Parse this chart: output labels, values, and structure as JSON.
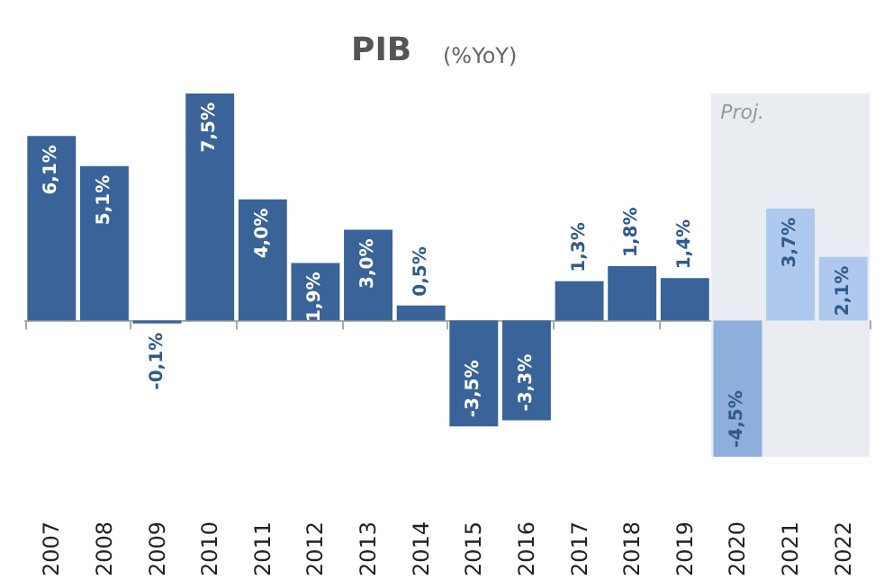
{
  "chart_data": {
    "type": "bar",
    "title": "PIB",
    "subtitle": "(%YoY)",
    "categories": [
      "2007",
      "2008",
      "2009",
      "2010",
      "2011",
      "2012",
      "2013",
      "2014",
      "2015",
      "2016",
      "2017",
      "2018",
      "2019",
      "2020",
      "2021",
      "2022"
    ],
    "values": [
      6.1,
      5.1,
      -0.1,
      7.5,
      4.0,
      1.9,
      3.0,
      0.5,
      -3.5,
      -3.3,
      1.3,
      1.8,
      1.4,
      -4.5,
      3.7,
      2.1
    ],
    "value_labels": [
      "6,1%",
      "5,1%",
      "-0,1%",
      "7,5%",
      "4,0%",
      "1,9%",
      "3,0%",
      "0,5%",
      "-3,5%",
      "-3,3%",
      "1,3%",
      "1,8%",
      "1,4%",
      "-4,5%",
      "3,7%",
      "2,1%"
    ],
    "colors": [
      "#3a6499",
      "#3a6499",
      "#3a6499",
      "#3a6499",
      "#3a6499",
      "#3a6499",
      "#3a6499",
      "#3a6499",
      "#3a6499",
      "#3a6499",
      "#3a6499",
      "#3a6499",
      "#3a6499",
      "#8eaedb",
      "#aec8ee",
      "#aec8ee"
    ],
    "bands": [
      {
        "axis": "x",
        "from": "2020",
        "to": "2022",
        "label": "Proj.",
        "color": "#e9edf2"
      }
    ],
    "grid": false
  }
}
